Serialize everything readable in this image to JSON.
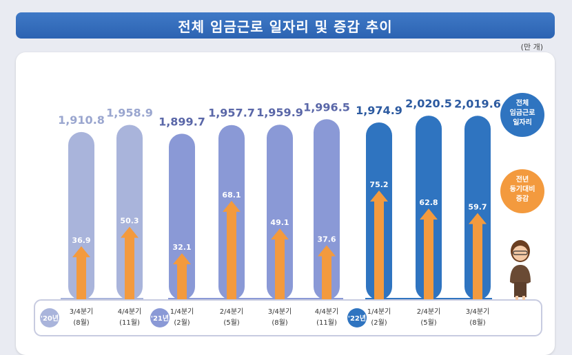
{
  "title": "전체 임금근로 일자리 및 증감 추이",
  "unit": "(만 개)",
  "legend": {
    "total": [
      "전체",
      "임금근로",
      "일자리"
    ],
    "change": [
      "전년",
      "동기대비",
      "증감"
    ]
  },
  "colors": {
    "group2020": "#a9b4db",
    "group2021": "#8a99d6",
    "group2022": "#2f74c0",
    "arrow": "#f39a3e",
    "legend_total": "#2f74c0",
    "legend_change": "#f39a3e",
    "label2020": "#9aa6cf",
    "label2021": "#5a67a8",
    "label2022": "#2c5aa0"
  },
  "chart_data": {
    "type": "bar",
    "title": "전체 임금근로 일자리 및 증감 추이",
    "ylabel": "(만 개)",
    "categories": [
      {
        "year": "'20년",
        "quarter": "3/4분기",
        "month": "(8월)"
      },
      {
        "year": "'20년",
        "quarter": "4/4분기",
        "month": "(11월)"
      },
      {
        "year": "'21년",
        "quarter": "1/4분기",
        "month": "(2월)"
      },
      {
        "year": "'21년",
        "quarter": "2/4분기",
        "month": "(5월)"
      },
      {
        "year": "'21년",
        "quarter": "3/4분기",
        "month": "(8월)"
      },
      {
        "year": "'21년",
        "quarter": "4/4분기",
        "month": "(11월)"
      },
      {
        "year": "'22년",
        "quarter": "1/4분기",
        "month": "(2월)"
      },
      {
        "year": "'22년",
        "quarter": "2/4분기",
        "month": "(5월)"
      },
      {
        "year": "'22년",
        "quarter": "3/4분기",
        "month": "(8월)"
      }
    ],
    "series": [
      {
        "name": "전체 임금근로 일자리",
        "values": [
          1910.8,
          1958.9,
          1899.7,
          1957.7,
          1959.9,
          1996.5,
          1974.9,
          2020.5,
          2019.6
        ],
        "labels": [
          "1,910.8",
          "1,958.9",
          "1,899.7",
          "1,957.7",
          "1,959.9",
          "1,996.5",
          "1,974.9",
          "2,020.5",
          "2,019.6"
        ]
      },
      {
        "name": "전년 동기대비 증감",
        "values": [
          36.9,
          50.3,
          32.1,
          68.1,
          49.1,
          37.6,
          75.2,
          62.8,
          59.7
        ],
        "labels": [
          "36.9",
          "50.3",
          "32.1",
          "68.1",
          "49.1",
          "37.6",
          "75.2",
          "62.8",
          "59.7"
        ]
      }
    ],
    "years": [
      "'20년",
      "'21년",
      "'22년"
    ],
    "total_axis": [
      1800,
      2030
    ],
    "change_axis": [
      0,
      95
    ]
  }
}
